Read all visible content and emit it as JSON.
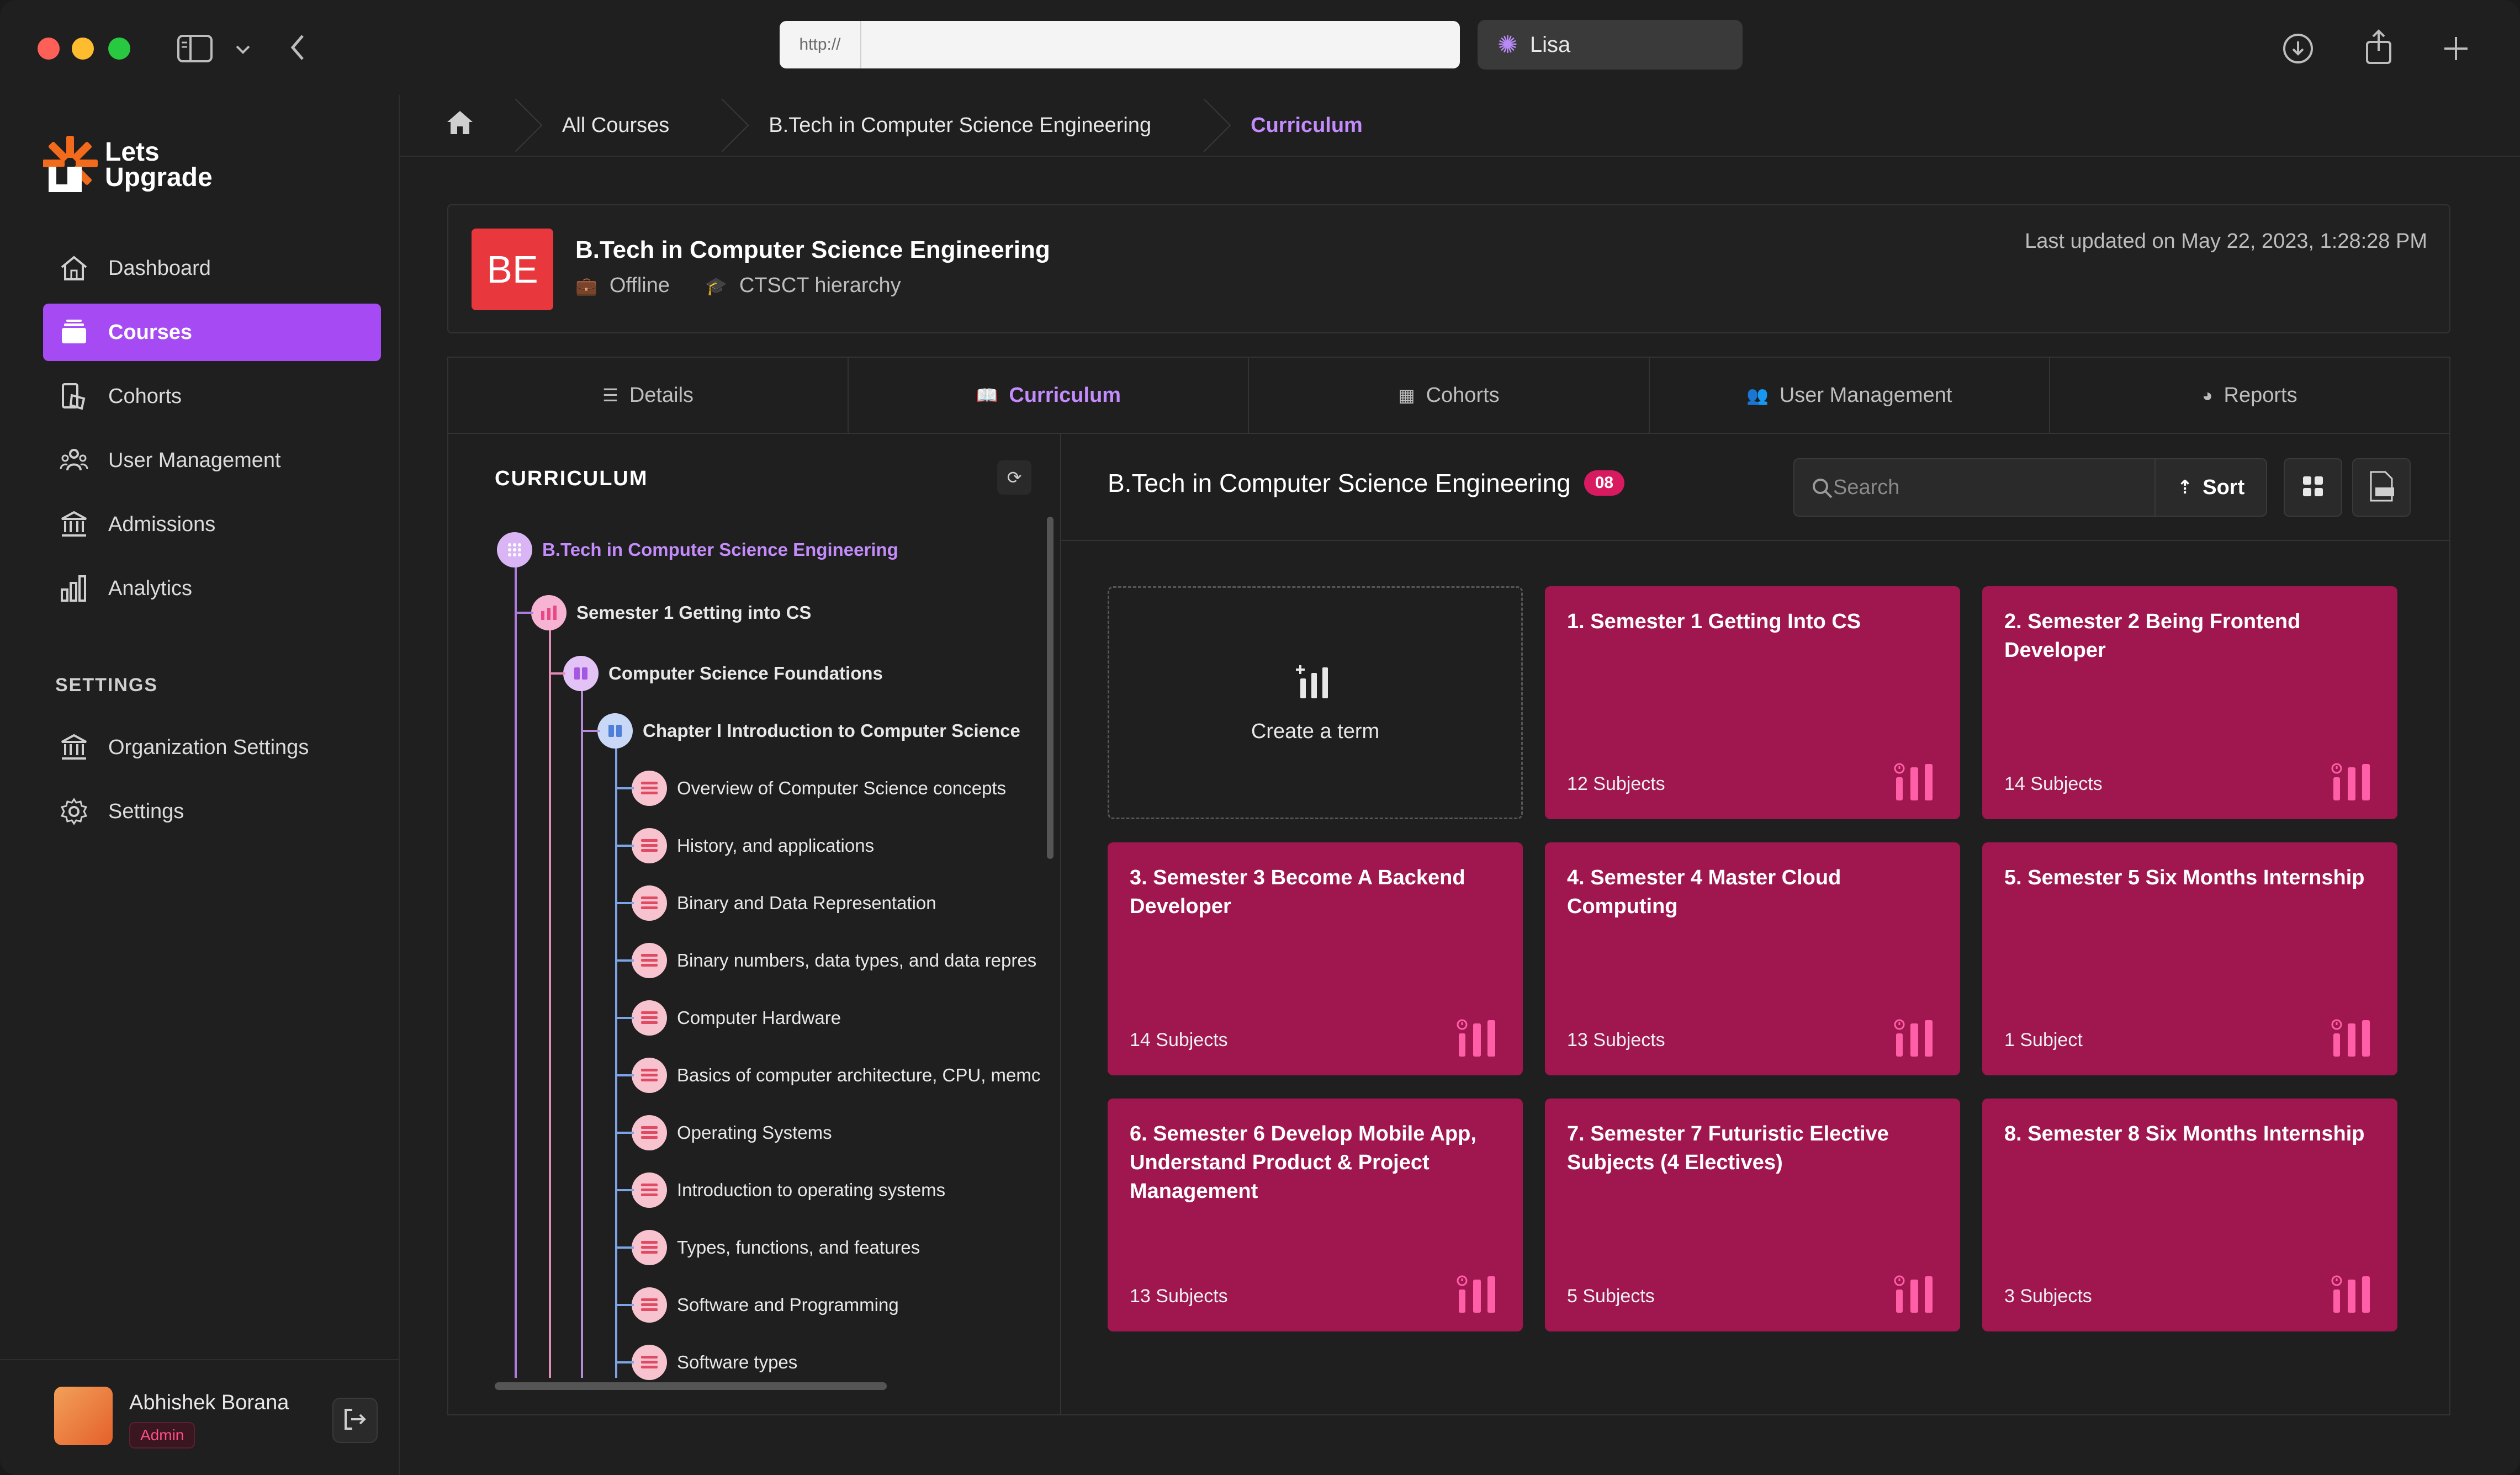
{
  "browser": {
    "url_prefix": "http://",
    "profile_name": "Lisa"
  },
  "brand": {
    "name_line1": "Lets",
    "name_line2": "Upgrade",
    "accent": "#a64bf4",
    "card_color": "#a01750"
  },
  "sidebar": {
    "items": [
      {
        "label": "Dashboard",
        "icon": "home-icon"
      },
      {
        "label": "Courses",
        "icon": "courses-icon",
        "active": true
      },
      {
        "label": "Cohorts",
        "icon": "cohorts-icon"
      },
      {
        "label": "User Management",
        "icon": "users-icon"
      },
      {
        "label": "Admissions",
        "icon": "bank-icon"
      },
      {
        "label": "Analytics",
        "icon": "analytics-icon"
      }
    ],
    "settings_heading": "SETTINGS",
    "settings_items": [
      {
        "label": "Organization Settings",
        "icon": "bank-icon"
      },
      {
        "label": "Settings",
        "icon": "gear-icon"
      }
    ],
    "user": {
      "name": "Abhishek Borana",
      "role": "Admin"
    }
  },
  "breadcrumb": [
    "All Courses",
    "B.Tech in Computer Science Engineering",
    "Curriculum"
  ],
  "course": {
    "initials": "BE",
    "title": "B.Tech in Computer Science Engineering",
    "mode": "Offline",
    "hierarchy": "CTSCT hierarchy",
    "last_updated": "Last updated on May 22, 2023, 1:28:28 PM"
  },
  "tabs": [
    {
      "label": "Details",
      "icon": "list-icon"
    },
    {
      "label": "Curriculum",
      "icon": "book-icon",
      "active": true
    },
    {
      "label": "Cohorts",
      "icon": "building-icon"
    },
    {
      "label": "User Management",
      "icon": "users-icon"
    },
    {
      "label": "Reports",
      "icon": "pie-icon"
    }
  ],
  "curriculum_tree": {
    "title": "CURRICULUM",
    "nodes": [
      {
        "label": "B.Tech in Computer Science Engineering",
        "level": 0
      },
      {
        "label": "Semester 1 Getting into CS",
        "level": 1
      },
      {
        "label": "Computer Science Foundations",
        "level": 2
      },
      {
        "label": "Chapter I Introduction to Computer Science",
        "level": 3
      },
      {
        "label": "Overview of Computer Science concepts",
        "level": 4
      },
      {
        "label": "History, and applications",
        "level": 4
      },
      {
        "label": "Binary and Data Representation",
        "level": 4
      },
      {
        "label": "Binary numbers, data types, and data repres",
        "level": 4
      },
      {
        "label": "Computer Hardware",
        "level": 4
      },
      {
        "label": "Basics of computer architecture, CPU, memc",
        "level": 4
      },
      {
        "label": "Operating Systems",
        "level": 4
      },
      {
        "label": "Introduction to operating systems",
        "level": 4
      },
      {
        "label": "Types, functions, and features",
        "level": 4
      },
      {
        "label": "Software and Programming",
        "level": 4
      },
      {
        "label": "Software types",
        "level": 4
      }
    ]
  },
  "terms": {
    "title": "B.Tech in Computer Science Engineering",
    "count": "08",
    "search_placeholder": "Search",
    "sort_label": "Sort",
    "create_label": "Create a term",
    "cards": [
      {
        "title": "1. Semester 1 Getting Into CS",
        "subjects": "12 Subjects"
      },
      {
        "title": "2. Semester 2 Being Frontend Developer",
        "subjects": "14 Subjects"
      },
      {
        "title": "3. Semester 3 Become A Backend Developer",
        "subjects": "14 Subjects"
      },
      {
        "title": "4. Semester 4 Master Cloud Computing",
        "subjects": "13 Subjects"
      },
      {
        "title": "5. Semester 5 Six Months Internship",
        "subjects": "1 Subject"
      },
      {
        "title": "6. Semester 6 Develop Mobile App, Understand Product & Project Management",
        "subjects": "13 Subjects"
      },
      {
        "title": "7. Semester 7 Futuristic Elective Subjects (4 Electives)",
        "subjects": "5 Subjects"
      },
      {
        "title": "8. Semester 8 Six Months Internship",
        "subjects": "3 Subjects"
      }
    ]
  }
}
